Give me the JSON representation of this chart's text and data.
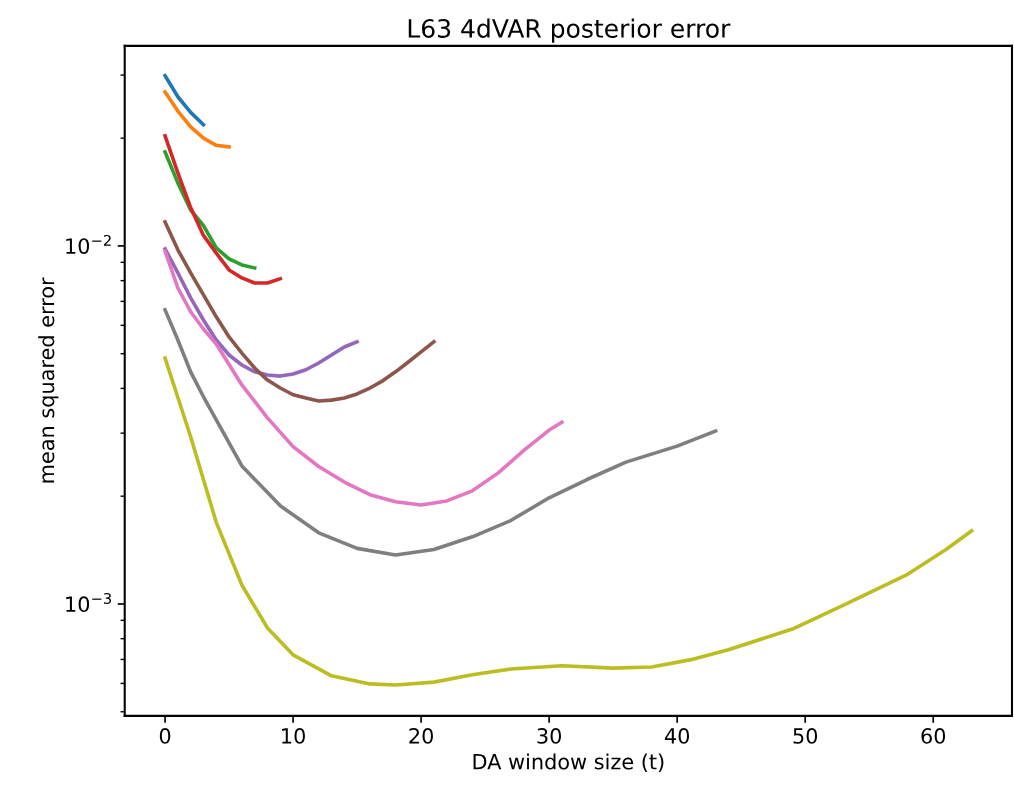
{
  "chart_data": {
    "type": "line",
    "title": "L63 4dVAR posterior error",
    "xlabel": "DA window size (t)",
    "ylabel": "mean squared error",
    "log": "y",
    "grid": false,
    "legend": false,
    "xlim": [
      -3.15,
      66.15
    ],
    "xticks": [
      0,
      10,
      20,
      30,
      40,
      50,
      60
    ],
    "ylim": [
      0.000487,
      0.0362
    ],
    "yticks": [
      {
        "value": 0.001,
        "label": "10$^{−3}$"
      },
      {
        "value": 0.01,
        "label": "10$^{−2}$"
      }
    ],
    "series": [
      {
        "color": "#1f77b4",
        "x": [
          0,
          1,
          2,
          3
        ],
        "values": [
          0.0299,
          0.0261,
          0.0236,
          0.0218
        ]
      },
      {
        "color": "#ff7f0e",
        "x": [
          0,
          1,
          2,
          3,
          4,
          5
        ],
        "values": [
          0.0269,
          0.0238,
          0.0215,
          0.02,
          0.0191,
          0.0189
        ]
      },
      {
        "color": "#2ca02c",
        "x": [
          0,
          1,
          2,
          3,
          4,
          5,
          6,
          7
        ],
        "values": [
          0.0183,
          0.015,
          0.0126,
          0.0114,
          0.00987,
          0.0092,
          0.00885,
          0.00868
        ]
      },
      {
        "color": "#d62728",
        "x": [
          0,
          1,
          2,
          3,
          4,
          5,
          6,
          7,
          8,
          9
        ],
        "values": [
          0.0203,
          0.016,
          0.0128,
          0.0107,
          0.00955,
          0.00857,
          0.00814,
          0.00788,
          0.00788,
          0.0081
        ]
      },
      {
        "color": "#9467bd",
        "x": [
          0,
          1,
          2,
          3,
          4,
          5,
          6,
          7,
          8,
          9,
          10,
          11,
          12,
          13,
          14,
          15
        ],
        "values": [
          0.00981,
          0.00841,
          0.00716,
          0.00621,
          0.00546,
          0.00496,
          0.00465,
          0.00445,
          0.00436,
          0.00433,
          0.00439,
          0.00451,
          0.00471,
          0.00496,
          0.00522,
          0.0054
        ]
      },
      {
        "color": "#8c564b",
        "x": [
          0,
          1,
          2,
          3,
          4,
          5,
          6,
          7,
          8,
          9,
          10,
          11,
          12,
          13,
          14,
          15,
          16,
          17,
          18,
          19,
          20,
          21
        ],
        "values": [
          0.01167,
          0.00975,
          0.00841,
          0.0073,
          0.00634,
          0.00557,
          0.00502,
          0.00456,
          0.00422,
          0.00401,
          0.00384,
          0.00376,
          0.00369,
          0.00371,
          0.00376,
          0.00386,
          0.00401,
          0.0042,
          0.00445,
          0.00474,
          0.00506,
          0.0054
        ]
      },
      {
        "color": "#e377c2",
        "x": [
          0,
          1,
          2,
          3,
          4,
          6,
          8,
          10,
          12,
          14,
          16,
          18,
          20,
          22,
          24,
          26,
          28,
          30,
          31
        ],
        "values": [
          0.00968,
          0.00763,
          0.00655,
          0.00586,
          0.00532,
          0.00409,
          0.00331,
          0.00275,
          0.00242,
          0.00219,
          0.00202,
          0.00193,
          0.00189,
          0.00194,
          0.00207,
          0.00232,
          0.00268,
          0.00306,
          0.00322
        ]
      },
      {
        "color": "#7f7f7f",
        "x": [
          0,
          1,
          2,
          3,
          6,
          9,
          12,
          15,
          18,
          21,
          24,
          27,
          30,
          33,
          36,
          40,
          43
        ],
        "values": [
          0.00663,
          0.00546,
          0.00445,
          0.00379,
          0.00243,
          0.00188,
          0.00158,
          0.00143,
          0.00137,
          0.00142,
          0.00154,
          0.00171,
          0.00198,
          0.00223,
          0.00249,
          0.00276,
          0.00304
        ]
      },
      {
        "color": "#bcbd22",
        "x": [
          0,
          2,
          4,
          6,
          8,
          10,
          13,
          16,
          18,
          21,
          24,
          27,
          31,
          35,
          38,
          41,
          44,
          49,
          53,
          58,
          61,
          63
        ],
        "values": [
          0.00486,
          0.00293,
          0.00169,
          0.00113,
          0.000857,
          0.000721,
          0.00063,
          0.000598,
          0.000594,
          0.000605,
          0.000634,
          0.000658,
          0.000672,
          0.000662,
          0.000667,
          0.000698,
          0.000745,
          0.000851,
          0.000993,
          0.00121,
          0.00142,
          0.0016
        ]
      }
    ]
  }
}
